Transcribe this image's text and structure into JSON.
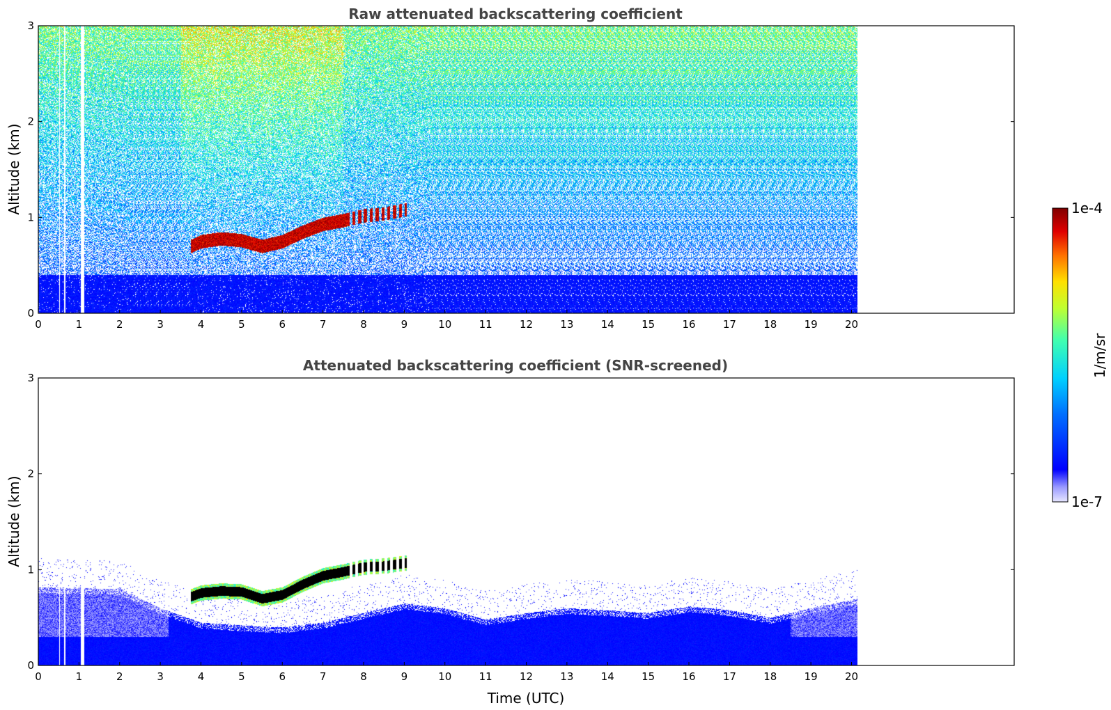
{
  "chart_data": [
    {
      "type": "heatmap",
      "title": "Raw attenuated backscattering coefficient",
      "xlabel": "",
      "ylabel": "Altitude (km)",
      "xlim": [
        0,
        24
      ],
      "ylim": [
        0,
        3
      ],
      "x_ticks": [
        0,
        1,
        2,
        3,
        4,
        5,
        6,
        7,
        8,
        9,
        10,
        11,
        12,
        13,
        14,
        15,
        16,
        17,
        18,
        19,
        20
      ],
      "y_ticks": [
        0,
        1,
        2,
        3
      ],
      "data_extent_x": [
        0,
        20.15
      ],
      "gaps_x": [
        [
          0.5,
          0.52
        ],
        [
          0.62,
          0.66
        ],
        [
          1.03,
          1.13
        ]
      ],
      "cloud_layer": {
        "time": [
          3.75,
          4.0,
          4.5,
          5.0,
          5.5,
          6.0,
          6.5,
          7.0,
          7.5,
          8.0,
          8.5,
          9.0
        ],
        "altitude": [
          0.7,
          0.75,
          0.78,
          0.76,
          0.7,
          0.75,
          0.85,
          0.93,
          0.97,
          1.02,
          1.04,
          1.08
        ]
      },
      "noisy_aerosol_region_x": [
        3.5,
        7.5
      ],
      "surface_layer_top_km": 0.4
    },
    {
      "type": "heatmap",
      "title": "Attenuated backscattering coefficient (SNR-screened)",
      "xlabel": "Time (UTC)",
      "ylabel": "Altitude (km)",
      "xlim": [
        0,
        24
      ],
      "ylim": [
        0,
        3
      ],
      "x_ticks": [
        0,
        1,
        2,
        3,
        4,
        5,
        6,
        7,
        8,
        9,
        10,
        11,
        12,
        13,
        14,
        15,
        16,
        17,
        18,
        19,
        20
      ],
      "y_ticks": [
        0,
        1,
        2,
        3
      ],
      "data_extent_x": [
        0,
        20.15
      ],
      "gaps_x": [
        [
          0.5,
          0.52
        ],
        [
          0.62,
          0.66
        ],
        [
          1.03,
          1.13
        ]
      ],
      "cloud_layer": {
        "time": [
          3.75,
          4.0,
          4.5,
          5.0,
          5.5,
          6.0,
          6.5,
          7.0,
          7.5,
          8.0,
          8.5,
          9.0
        ],
        "altitude": [
          0.72,
          0.76,
          0.78,
          0.77,
          0.7,
          0.74,
          0.85,
          0.94,
          0.98,
          1.03,
          1.04,
          1.07
        ]
      },
      "boundary_layer_top": {
        "time": [
          0,
          2,
          3,
          4,
          5,
          6,
          7,
          8,
          9,
          10,
          11,
          12,
          13,
          14,
          15,
          16,
          17,
          18,
          19,
          20.15
        ],
        "altitude": [
          0.82,
          0.8,
          0.6,
          0.45,
          0.42,
          0.4,
          0.45,
          0.55,
          0.65,
          0.6,
          0.48,
          0.55,
          0.6,
          0.58,
          0.55,
          0.62,
          0.58,
          0.5,
          0.6,
          0.7
        ]
      }
    }
  ],
  "colorbar": {
    "label": "1/m/sr",
    "min_label": "1e-7",
    "max_label": "1e-4",
    "colormap": "jet",
    "scale": "log",
    "range": [
      1e-07,
      0.0001
    ]
  }
}
